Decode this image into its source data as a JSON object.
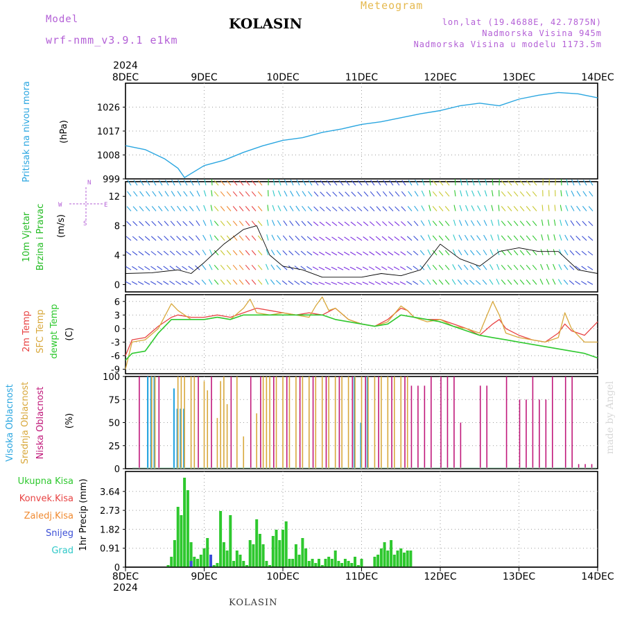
{
  "header": {
    "model_label": "Model",
    "model_name": "wrf-nmm_v3.9.1 e1km",
    "title": "KOLASIN",
    "meteogram_label": "Meteogram",
    "lonlat": "lon,lat (19.4688E, 42.7875N)",
    "altitude": "Nadmorska Visina 945m",
    "model_altitude": "Nadmorska Visina u modelu 1173.5m"
  },
  "footer": {
    "station": "KOLASIN",
    "credit": "made by Angel"
  },
  "colors": {
    "pressure": "#2aa6e0",
    "wind_label": "#22bb22",
    "temp2m": "#e84343",
    "sfc_temp": "#d8a83c",
    "dewpoint": "#2ec82e",
    "high_cloud": "#2aa6e0",
    "mid_cloud": "#d8a83c",
    "low_cloud": "#c0187a",
    "total_precip": "#2ec82e",
    "conv_precip": "#e84343",
    "frozen_precip": "#f08a30",
    "snow": "#3b4fd6",
    "graupel": "#2ec8c8",
    "compass": "#b35fd6"
  },
  "chart_data": [
    {
      "id": "time_axis",
      "type": "line",
      "year_label": "2024",
      "x_ticks": [
        "8DEC",
        "9DEC",
        "10DEC",
        "11DEC",
        "12DEC",
        "13DEC",
        "14DEC"
      ],
      "xlim": [
        "2024-12-08T00",
        "2024-12-14T00"
      ]
    },
    {
      "id": "pressure",
      "type": "line",
      "ylabel": "Pritisak na nivou mora",
      "unit": "(hPa)",
      "ylim": [
        999,
        1035
      ],
      "y_ticks": [
        999,
        1008,
        1017,
        1026
      ],
      "grid": true,
      "series": [
        {
          "name": "Pritisak na nivou mora",
          "x": [
            "2024-12-08T00",
            "2024-12-08T06",
            "2024-12-08T12",
            "2024-12-08T16",
            "2024-12-08T18",
            "2024-12-09T00",
            "2024-12-09T06",
            "2024-12-09T12",
            "2024-12-09T18",
            "2024-12-10T00",
            "2024-12-10T06",
            "2024-12-10T12",
            "2024-12-10T18",
            "2024-12-11T00",
            "2024-12-11T06",
            "2024-12-11T12",
            "2024-12-11T18",
            "2024-12-12T00",
            "2024-12-12T06",
            "2024-12-12T12",
            "2024-12-12T18",
            "2024-12-13T00",
            "2024-12-13T06",
            "2024-12-13T12",
            "2024-12-13T18",
            "2024-12-14T00"
          ],
          "y": [
            1011.5,
            1010,
            1006.5,
            1003,
            999.5,
            1004,
            1006,
            1009,
            1011.5,
            1013.5,
            1014.5,
            1016.5,
            1017.8,
            1019.5,
            1020.5,
            1022,
            1023.5,
            1024.7,
            1026.5,
            1027.5,
            1026.5,
            1029,
            1030.5,
            1031.5,
            1031,
            1029.5
          ]
        }
      ]
    },
    {
      "id": "wind",
      "type": "line",
      "ylabel": [
        "10m Vjetar",
        "Brzina i Pravac"
      ],
      "unit": "(m/s)",
      "compass": {
        "north": "N",
        "east": "E",
        "west": "W",
        "south": "S"
      },
      "ylim": [
        -1,
        14
      ],
      "y_ticks": [
        0,
        4,
        8,
        12
      ],
      "series": [
        {
          "name": "10m Vjetar",
          "x": [
            "2024-12-08T00",
            "2024-12-08T08",
            "2024-12-08T16",
            "2024-12-08T20",
            "2024-12-09T00",
            "2024-12-09T06",
            "2024-12-09T12",
            "2024-12-09T16",
            "2024-12-09T20",
            "2024-12-10T00",
            "2024-12-10T06",
            "2024-12-10T12",
            "2024-12-10T18",
            "2024-12-11T00",
            "2024-12-11T06",
            "2024-12-11T12",
            "2024-12-11T18",
            "2024-12-12T00",
            "2024-12-12T06",
            "2024-12-12T12",
            "2024-12-12T18",
            "2024-12-13T00",
            "2024-12-13T06",
            "2024-12-13T12",
            "2024-12-13T18",
            "2024-12-14T00"
          ],
          "y": [
            1.5,
            1.6,
            2,
            1.5,
            3,
            5.5,
            7.5,
            8,
            4,
            2.5,
            2,
            1,
            1,
            1,
            1.5,
            1.2,
            2,
            5.5,
            3.5,
            2.5,
            4.5,
            5,
            4.5,
            4.5,
            2,
            1.5
          ]
        }
      ]
    },
    {
      "id": "temperature",
      "type": "line",
      "ylabel": [
        "2m Temp",
        "SFC Temp",
        "dewpt Temp"
      ],
      "unit": "(C)",
      "ylim": [
        -10,
        7.5
      ],
      "y_ticks": [
        -9,
        -6,
        -3,
        0,
        3,
        6
      ],
      "grid": true,
      "series": [
        {
          "name": "2m Temp",
          "x": [
            "2024-12-08T00",
            "2024-12-08T02",
            "2024-12-08T06",
            "2024-12-08T10",
            "2024-12-08T14",
            "2024-12-08T16",
            "2024-12-08T20",
            "2024-12-09T00",
            "2024-12-09T04",
            "2024-12-09T08",
            "2024-12-09T12",
            "2024-12-09T16",
            "2024-12-09T20",
            "2024-12-10T00",
            "2024-12-10T04",
            "2024-12-10T08",
            "2024-12-10T12",
            "2024-12-10T16",
            "2024-12-10T20",
            "2024-12-11T00",
            "2024-12-11T04",
            "2024-12-11T08",
            "2024-12-11T12",
            "2024-12-11T14",
            "2024-12-11T16",
            "2024-12-11T20",
            "2024-12-12T00",
            "2024-12-12T04",
            "2024-12-12T08",
            "2024-12-12T12",
            "2024-12-12T16",
            "2024-12-12T18",
            "2024-12-12T20",
            "2024-12-13T00",
            "2024-12-13T04",
            "2024-12-13T08",
            "2024-12-13T12",
            "2024-12-13T14",
            "2024-12-13T16",
            "2024-12-13T20",
            "2024-12-14T00"
          ],
          "y": [
            -6,
            -2.5,
            -2,
            0.5,
            2.5,
            3,
            2.5,
            2.5,
            3,
            2.5,
            3.5,
            4.5,
            4,
            3.5,
            3,
            3.5,
            3,
            4.5,
            2,
            1,
            0.5,
            2,
            4.5,
            4,
            2.5,
            2,
            2,
            1,
            0,
            -1.5,
            1,
            2,
            0,
            -1.5,
            -2.5,
            -3,
            -1,
            1,
            -0.5,
            -1.5,
            1.5
          ]
        },
        {
          "name": "SFC Temp",
          "x": [
            "2024-12-08T00",
            "2024-12-08T02",
            "2024-12-08T06",
            "2024-12-08T10",
            "2024-12-08T14",
            "2024-12-08T16",
            "2024-12-08T20",
            "2024-12-09T00",
            "2024-12-09T04",
            "2024-12-09T08",
            "2024-12-09T12",
            "2024-12-09T14",
            "2024-12-09T16",
            "2024-12-09T20",
            "2024-12-10T00",
            "2024-12-10T04",
            "2024-12-10T08",
            "2024-12-10T10",
            "2024-12-10T12",
            "2024-12-10T14",
            "2024-12-10T16",
            "2024-12-10T20",
            "2024-12-11T00",
            "2024-12-11T04",
            "2024-12-11T08",
            "2024-12-11T12",
            "2024-12-11T14",
            "2024-12-11T16",
            "2024-12-11T20",
            "2024-12-12T00",
            "2024-12-12T04",
            "2024-12-12T08",
            "2024-12-12T12",
            "2024-12-12T16",
            "2024-12-12T18",
            "2024-12-12T20",
            "2024-12-13T00",
            "2024-12-13T04",
            "2024-12-13T08",
            "2024-12-13T12",
            "2024-12-13T14",
            "2024-12-13T16",
            "2024-12-13T20",
            "2024-12-14T00"
          ],
          "y": [
            -9,
            -3,
            -2.5,
            0,
            5.5,
            4,
            2,
            2,
            2.5,
            2,
            4.5,
            6.5,
            3.5,
            3,
            3.5,
            3,
            2.5,
            5,
            7,
            4,
            4.5,
            2,
            1,
            0.5,
            1.5,
            5,
            4,
            2.5,
            1.5,
            2,
            0.5,
            0,
            -1,
            6,
            3,
            -1,
            -2,
            -2.5,
            -3,
            -2,
            3.5,
            0,
            -3,
            -3
          ]
        },
        {
          "name": "dewpt Temp",
          "x": [
            "2024-12-08T00",
            "2024-12-08T02",
            "2024-12-08T06",
            "2024-12-08T10",
            "2024-12-08T14",
            "2024-12-08T16",
            "2024-12-08T20",
            "2024-12-09T00",
            "2024-12-09T04",
            "2024-12-09T08",
            "2024-12-09T12",
            "2024-12-09T16",
            "2024-12-09T20",
            "2024-12-10T00",
            "2024-12-10T04",
            "2024-12-10T08",
            "2024-12-10T12",
            "2024-12-10T16",
            "2024-12-10T20",
            "2024-12-11T00",
            "2024-12-11T04",
            "2024-12-11T08",
            "2024-12-11T12",
            "2024-12-11T16",
            "2024-12-11T20",
            "2024-12-12T00",
            "2024-12-12T04",
            "2024-12-12T08",
            "2024-12-12T12",
            "2024-12-12T16",
            "2024-12-12T20",
            "2024-12-13T00",
            "2024-12-13T04",
            "2024-12-13T08",
            "2024-12-13T12",
            "2024-12-13T16",
            "2024-12-13T20",
            "2024-12-14T00"
          ],
          "y": [
            -7,
            -5.5,
            -5,
            -1,
            2,
            2,
            2,
            2,
            2.5,
            2,
            3,
            3,
            3,
            3,
            3,
            3,
            3,
            2,
            1.5,
            1,
            0.5,
            1,
            3,
            2.5,
            2,
            1.5,
            0.5,
            -0.5,
            -1.5,
            -2,
            -2.5,
            -3,
            -3.5,
            -4,
            -4.5,
            -5,
            -5.5,
            -6.5
          ]
        }
      ]
    },
    {
      "id": "cloud",
      "type": "bar",
      "ylabel": [
        "Visoka Oblacnost",
        "Srednja Oblacnost",
        "Niska Oblacnost"
      ],
      "unit": "(%)",
      "ylim": [
        0,
        100
      ],
      "y_ticks": [
        0,
        25,
        50,
        75,
        100
      ],
      "grid": true,
      "series": [
        {
          "name": "Visoka Oblacnost",
          "x": [
            "2024-12-08T07",
            "2024-12-08T08",
            "2024-12-08T09",
            "2024-12-08T15",
            "2024-12-08T16",
            "2024-12-08T17",
            "2024-12-08T18",
            "2024-12-10T22",
            "2024-12-11T00",
            "2024-12-11T02"
          ],
          "y": [
            100,
            100,
            100,
            87,
            65,
            65,
            65,
            100,
            50,
            100
          ]
        },
        {
          "name": "Srednja Oblacnost",
          "x": [
            "2024-12-08T08",
            "2024-12-08T09",
            "2024-12-08T16",
            "2024-12-08T17",
            "2024-12-08T18",
            "2024-12-08T20",
            "2024-12-08T21",
            "2024-12-09T00",
            "2024-12-09T01",
            "2024-12-09T04",
            "2024-12-09T05",
            "2024-12-09T06",
            "2024-12-09T07",
            "2024-12-09T10",
            "2024-12-09T12",
            "2024-12-09T16",
            "2024-12-09T18",
            "2024-12-09T19",
            "2024-12-09T20",
            "2024-12-09T22",
            "2024-12-10T00",
            "2024-12-10T02",
            "2024-12-10T04",
            "2024-12-10T06",
            "2024-12-10T08",
            "2024-12-10T10",
            "2024-12-10T12",
            "2024-12-10T14",
            "2024-12-10T16",
            "2024-12-10T18",
            "2024-12-10T20",
            "2024-12-10T22",
            "2024-12-11T00",
            "2024-12-11T02",
            "2024-12-11T04",
            "2024-12-11T06",
            "2024-12-11T08",
            "2024-12-11T10",
            "2024-12-11T12",
            "2024-12-11T14"
          ],
          "y": [
            100,
            100,
            100,
            100,
            100,
            100,
            100,
            95,
            85,
            55,
            95,
            100,
            70,
            100,
            35,
            60,
            100,
            100,
            100,
            100,
            100,
            100,
            100,
            100,
            100,
            100,
            100,
            100,
            100,
            100,
            100,
            100,
            100,
            100,
            100,
            100,
            100,
            100,
            100,
            100
          ]
        },
        {
          "name": "Niska Oblacnost",
          "x": [
            "2024-12-08T04",
            "2024-12-08T10",
            "2024-12-08T22",
            "2024-12-09T02",
            "2024-12-09T08",
            "2024-12-09T14",
            "2024-12-09T17",
            "2024-12-09T21",
            "2024-12-10T01",
            "2024-12-10T05",
            "2024-12-10T09",
            "2024-12-10T13",
            "2024-12-10T17",
            "2024-12-10T21",
            "2024-12-11T01",
            "2024-12-11T05",
            "2024-12-11T09",
            "2024-12-11T13",
            "2024-12-11T15",
            "2024-12-11T17",
            "2024-12-11T19",
            "2024-12-11T21",
            "2024-12-12T00",
            "2024-12-12T02",
            "2024-12-12T04",
            "2024-12-12T06",
            "2024-12-12T12",
            "2024-12-12T14",
            "2024-12-12T20",
            "2024-12-13T00",
            "2024-12-13T02",
            "2024-12-13T04",
            "2024-12-13T06",
            "2024-12-13T08",
            "2024-12-13T10",
            "2024-12-13T14",
            "2024-12-13T16",
            "2024-12-13T18",
            "2024-12-13T20",
            "2024-12-13T22"
          ],
          "y": [
            100,
            100,
            100,
            100,
            100,
            100,
            100,
            100,
            100,
            100,
            100,
            100,
            100,
            100,
            100,
            100,
            100,
            100,
            90,
            90,
            90,
            100,
            100,
            100,
            100,
            50,
            90,
            90,
            100,
            75,
            75,
            100,
            75,
            75,
            100,
            100,
            100,
            5,
            5,
            5
          ]
        }
      ]
    },
    {
      "id": "precip",
      "type": "bar",
      "ylabel": "1hr Precip",
      "unit": "(mm)",
      "legend": [
        "Ukupna Kisa",
        "Konvek.Kisa",
        "Zaledj.Kisa",
        "Snijeg",
        "Grad"
      ],
      "ylim": [
        0,
        4.6
      ],
      "y_ticks": [
        0,
        0.91,
        1.82,
        2.73,
        3.64
      ],
      "grid": true,
      "series": [
        {
          "name": "Ukupna Kisa",
          "x": [
            "2024-12-08T13",
            "2024-12-08T14",
            "2024-12-08T15",
            "2024-12-08T16",
            "2024-12-08T17",
            "2024-12-08T18",
            "2024-12-08T19",
            "2024-12-08T20",
            "2024-12-08T21",
            "2024-12-08T22",
            "2024-12-08T23",
            "2024-12-09T00",
            "2024-12-09T01",
            "2024-12-09T02",
            "2024-12-09T03",
            "2024-12-09T04",
            "2024-12-09T05",
            "2024-12-09T06",
            "2024-12-09T07",
            "2024-12-09T08",
            "2024-12-09T09",
            "2024-12-09T10",
            "2024-12-09T11",
            "2024-12-09T12",
            "2024-12-09T13",
            "2024-12-09T14",
            "2024-12-09T15",
            "2024-12-09T16",
            "2024-12-09T17",
            "2024-12-09T18",
            "2024-12-09T19",
            "2024-12-09T20",
            "2024-12-09T21",
            "2024-12-09T22",
            "2024-12-09T23",
            "2024-12-10T00",
            "2024-12-10T01",
            "2024-12-10T02",
            "2024-12-10T03",
            "2024-12-10T04",
            "2024-12-10T05",
            "2024-12-10T06",
            "2024-12-10T07",
            "2024-12-10T08",
            "2024-12-10T09",
            "2024-12-10T10",
            "2024-12-10T11",
            "2024-12-10T12",
            "2024-12-10T13",
            "2024-12-10T14",
            "2024-12-10T15",
            "2024-12-10T16",
            "2024-12-10T17",
            "2024-12-10T18",
            "2024-12-10T19",
            "2024-12-10T20",
            "2024-12-10T21",
            "2024-12-10T22",
            "2024-12-10T23",
            "2024-12-11T00",
            "2024-12-11T04",
            "2024-12-11T05",
            "2024-12-11T06",
            "2024-12-11T07",
            "2024-12-11T08",
            "2024-12-11T09",
            "2024-12-11T10",
            "2024-12-11T11",
            "2024-12-11T12",
            "2024-12-11T13",
            "2024-12-11T14",
            "2024-12-11T15"
          ],
          "y": [
            0.1,
            0.5,
            1.3,
            2.9,
            2.5,
            4.3,
            3.7,
            1.2,
            0.5,
            0.4,
            0.6,
            0.9,
            1.4,
            0.5,
            0.1,
            0.2,
            2.7,
            1.2,
            0.8,
            2.5,
            0.3,
            0.8,
            0.6,
            0.3,
            0.1,
            1.3,
            1.1,
            2.3,
            1.6,
            1.1,
            0.3,
            0.1,
            1.5,
            1.8,
            1.3,
            1.8,
            2.2,
            0.4,
            0.4,
            1.1,
            0.6,
            1.4,
            0.9,
            0.3,
            0.4,
            0.2,
            0.4,
            0.1,
            0.4,
            0.5,
            0.4,
            0.8,
            0.3,
            0.2,
            0.4,
            0.3,
            0.2,
            0.5,
            0.1,
            0.4,
            0.5,
            0.6,
            0.9,
            1.2,
            0.8,
            1.3,
            0.6,
            0.8,
            0.9,
            0.7,
            0.8,
            0.8
          ]
        },
        {
          "name": "Snijeg",
          "x": [
            "2024-12-08T20",
            "2024-12-09T02"
          ],
          "y": [
            0.3,
            0.6
          ]
        }
      ]
    }
  ]
}
